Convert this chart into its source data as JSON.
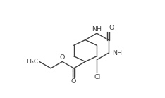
{
  "bg_color": "#ffffff",
  "line_color": "#404040",
  "line_width": 1.0,
  "font_size": 6.8,
  "font_color": "#404040",
  "figsize": [
    2.34,
    1.39
  ],
  "dpi": 100,
  "xlim": [
    0.0,
    11.7
  ],
  "ylim": [
    0.0,
    6.95
  ]
}
